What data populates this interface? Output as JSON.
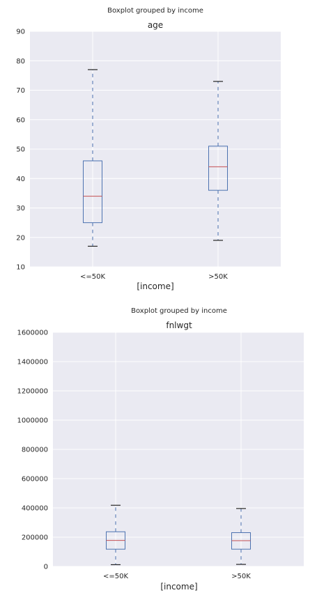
{
  "chart_data": [
    {
      "type": "boxplot",
      "suptitle": "Boxplot grouped by income",
      "title": "age",
      "xlabel": "[income]",
      "ylabel": "",
      "ylim": [
        10,
        90
      ],
      "yticks": [
        "10",
        "20",
        "30",
        "40",
        "50",
        "60",
        "70",
        "80",
        "90"
      ],
      "categories": [
        "<=50K",
        ">50K"
      ],
      "boxes": [
        {
          "whisker_low": 17,
          "q1": 25,
          "median": 34,
          "q3": 46,
          "whisker_high": 77
        },
        {
          "whisker_low": 19,
          "q1": 36,
          "median": 44,
          "q3": 51,
          "whisker_high": 73
        }
      ],
      "grid": true
    },
    {
      "type": "boxplot",
      "suptitle": "Boxplot grouped by income",
      "title": "fnlwgt",
      "xlabel": "[income]",
      "ylabel": "",
      "ylim": [
        0,
        1600000
      ],
      "yticks": [
        "0",
        "200000",
        "400000",
        "600000",
        "800000",
        "1000000",
        "1200000",
        "1400000",
        "1600000"
      ],
      "categories": [
        "<=50K",
        ">50K"
      ],
      "boxes": [
        {
          "whisker_low": 12000,
          "q1": 118000,
          "median": 178000,
          "q3": 237000,
          "whisker_high": 418000
        },
        {
          "whisker_low": 14000,
          "q1": 118000,
          "median": 176000,
          "q3": 231000,
          "whisker_high": 396000
        }
      ],
      "grid": true
    }
  ],
  "colors": {
    "plot_bg": "#eaeaf2",
    "grid": "#ffffff",
    "box": "#4c72b0",
    "median": "#c44e52",
    "cap": "#262626",
    "text": "#262626"
  }
}
